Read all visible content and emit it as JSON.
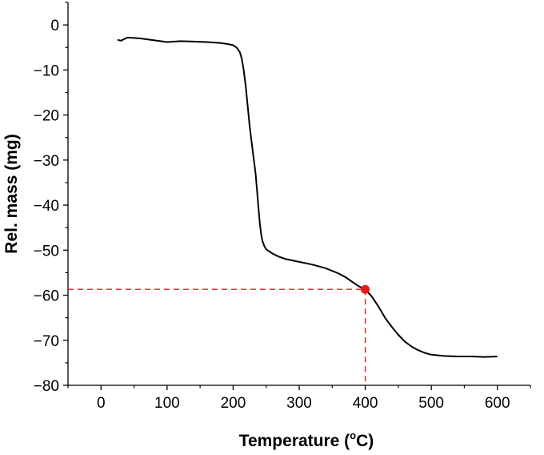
{
  "chart_data": {
    "type": "line",
    "title": "",
    "xlabel": "Temperature (",
    "xlabel_sup": "o",
    "xlabel_tail": "C)",
    "ylabel": "Rel. mass (mg)",
    "xlim": [
      -50,
      650
    ],
    "ylim": [
      -80,
      5
    ],
    "x_ticks": [
      0,
      100,
      200,
      300,
      400,
      500,
      600
    ],
    "y_ticks": [
      0,
      -10,
      -20,
      -30,
      -40,
      -50,
      -60,
      -70,
      -80
    ],
    "grid": false,
    "series": [
      {
        "color": "#000000",
        "x": [
          25,
          30,
          40,
          50,
          60,
          80,
          100,
          120,
          140,
          160,
          180,
          190,
          200,
          205,
          210,
          213,
          216,
          219,
          222,
          225,
          228,
          231,
          234,
          236,
          238,
          240,
          242,
          244,
          247,
          250,
          255,
          260,
          270,
          280,
          300,
          320,
          340,
          360,
          370,
          380,
          390,
          400,
          410,
          420,
          430,
          440,
          450,
          460,
          470,
          480,
          490,
          500,
          520,
          540,
          560,
          580,
          600
        ],
        "y": [
          -3.3,
          -3.5,
          -2.8,
          -2.9,
          -3.0,
          -3.4,
          -3.8,
          -3.6,
          -3.7,
          -3.8,
          -4.0,
          -4.2,
          -4.5,
          -5.0,
          -6.0,
          -7.5,
          -10.0,
          -13.5,
          -18.0,
          -22.5,
          -26.0,
          -29.5,
          -33.0,
          -36.5,
          -40.0,
          -43.5,
          -46.0,
          -47.8,
          -49.0,
          -49.8,
          -50.3,
          -50.8,
          -51.5,
          -52.0,
          -52.6,
          -53.2,
          -54.0,
          -55.2,
          -56.0,
          -57.0,
          -58.0,
          -58.7,
          -60.3,
          -62.5,
          -65.0,
          -67.0,
          -68.8,
          -70.3,
          -71.4,
          -72.2,
          -72.8,
          -73.2,
          -73.5,
          -73.6,
          -73.6,
          -73.7,
          -73.6
        ]
      }
    ],
    "marker": {
      "x": 400,
      "y": -58.7,
      "color": "#e8191e"
    },
    "guide_color": "#e8191e"
  }
}
